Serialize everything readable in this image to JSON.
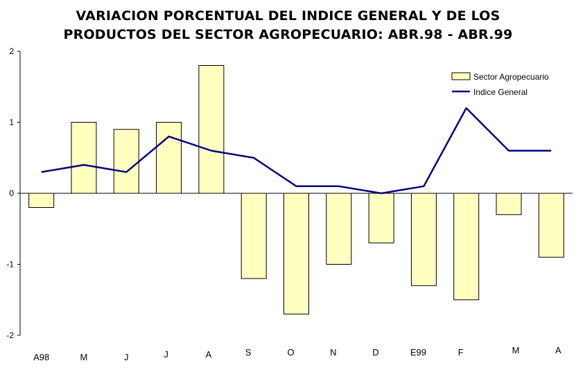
{
  "chart_data": {
    "type": "bar",
    "title_lines": [
      "VARIACION PORCENTUAL DEL INDICE GENERAL Y DE LOS",
      "PRODUCTOS DEL SECTOR AGROPECUARIO: ABR.98 - ABR.99"
    ],
    "categories": [
      "A98",
      "M",
      "J",
      "J",
      "A",
      "S",
      "O",
      "N",
      "D",
      "E99",
      "F",
      "M",
      "A"
    ],
    "series": [
      {
        "name": "Sector Agropecuario",
        "kind": "bar",
        "values": [
          -0.2,
          1.0,
          0.9,
          1.0,
          1.8,
          -1.2,
          -1.7,
          -1.0,
          -0.7,
          -1.3,
          -1.5,
          -0.3,
          -0.9
        ]
      },
      {
        "name": "Indice General",
        "kind": "line",
        "values": [
          0.3,
          0.4,
          0.3,
          0.8,
          0.6,
          0.5,
          0.1,
          0.1,
          0.0,
          0.1,
          1.2,
          0.6,
          0.6
        ]
      }
    ],
    "ylim": [
      -2,
      2
    ],
    "yticks": [
      2,
      1,
      0,
      -1,
      -2
    ],
    "xlabel": "",
    "ylabel": "",
    "grid": false,
    "legend_position": "top-right",
    "colors": {
      "bar_fill": "#FFFFC0",
      "bar_stroke": "#000000",
      "line": "#000080"
    }
  }
}
